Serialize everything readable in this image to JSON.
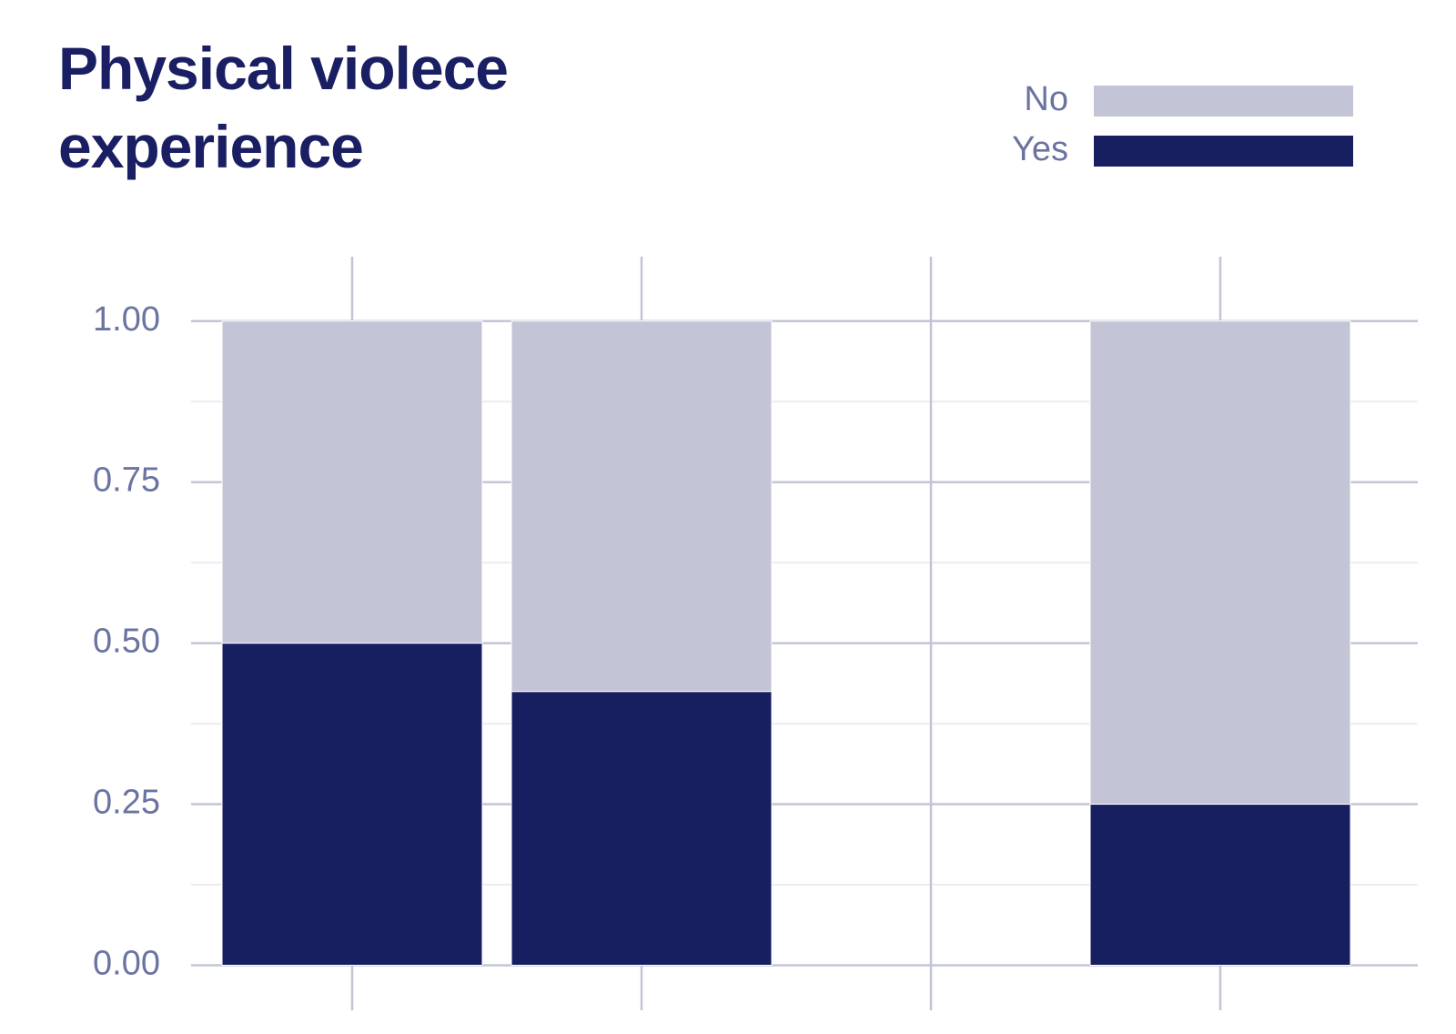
{
  "chart_data": {
    "type": "stacked_bar",
    "title": "Physical violece experience",
    "categories": [
      null,
      null,
      null,
      null
    ],
    "series": [
      {
        "name": "No",
        "color": "#c3c5d6",
        "values": [
          0.5,
          0.575,
          null,
          0.75
        ]
      },
      {
        "name": "Yes",
        "color": "#181f61",
        "values": [
          0.5,
          0.425,
          null,
          0.25
        ]
      }
    ],
    "ylim": [
      -0.07,
      1.1
    ],
    "yticks": [
      {
        "value": 0,
        "label": "0.00"
      },
      {
        "value": 0.25,
        "label": "0.25"
      },
      {
        "value": 0.5,
        "label": "0.50"
      },
      {
        "value": 0.75,
        "label": "0.75"
      },
      {
        "value": 1,
        "label": "1.00"
      }
    ],
    "yminor": [
      0.125,
      0.375,
      0.625,
      0.875
    ],
    "grid": true,
    "legend": "top-right"
  }
}
